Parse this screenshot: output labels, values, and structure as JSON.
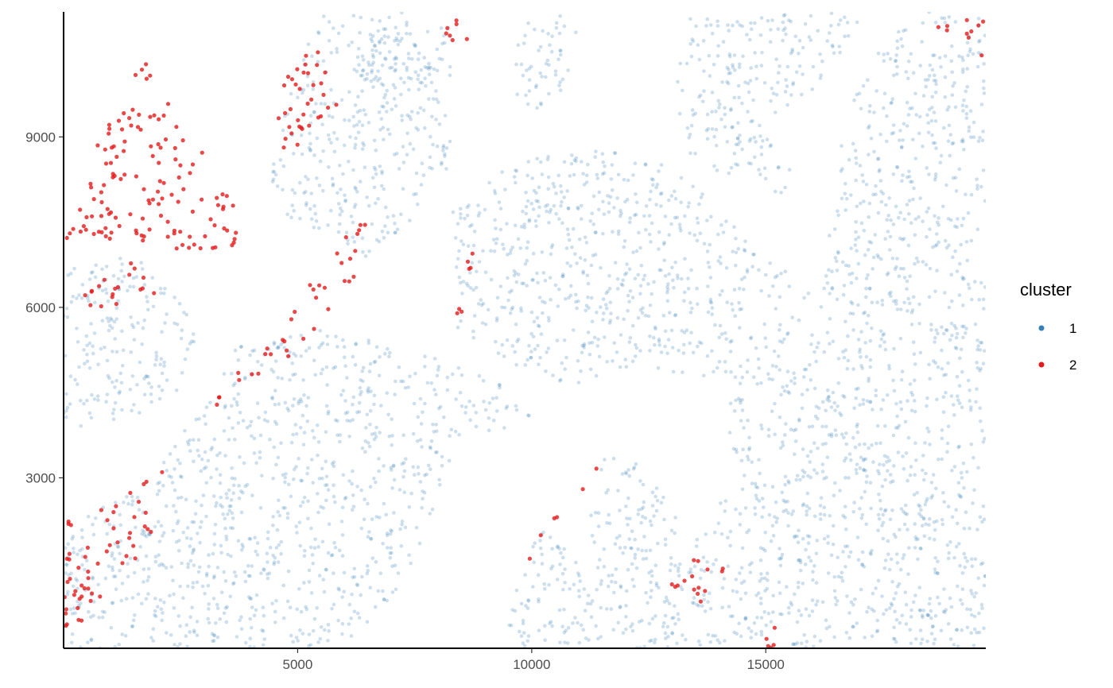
{
  "chart_data": {
    "type": "scatter",
    "title": "",
    "xlabel": "",
    "ylabel": "",
    "xlim": [
      0,
      19700
    ],
    "ylim": [
      0,
      11200
    ],
    "x_ticks": [
      5000,
      10000,
      15000
    ],
    "y_ticks": [
      3000,
      6000,
      9000
    ],
    "x_tick_labels": [
      "5000",
      "10000",
      "15000"
    ],
    "y_tick_labels": [
      "3000",
      "6000",
      "9000"
    ],
    "grid": false,
    "legend": {
      "title": "cluster",
      "placement": "right",
      "entries": [
        {
          "label": "1",
          "color": "#377EB8"
        },
        {
          "label": "2",
          "color": "#E41A1C"
        }
      ]
    },
    "series": [
      {
        "name": "1",
        "color": "#377EB8",
        "opacity": 0.25,
        "regions": [
          [
            [
              0,
              4000
            ],
            [
              0,
              6700
            ],
            [
              1500,
              6900
            ],
            [
              2500,
              6200
            ],
            [
              2900,
              5300
            ],
            [
              2700,
              4500
            ],
            [
              1500,
              4100
            ],
            [
              300,
              3900
            ]
          ],
          [
            [
              0,
              0
            ],
            [
              0,
              2200
            ],
            [
              1700,
              2800
            ],
            [
              2900,
              4200
            ],
            [
              3700,
              5300
            ],
            [
              4800,
              5500
            ],
            [
              6000,
              5700
            ],
            [
              7600,
              5200
            ],
            [
              9300,
              4700
            ],
            [
              10100,
              4000
            ],
            [
              8400,
              3700
            ],
            [
              8000,
              2500
            ],
            [
              7600,
              1700
            ],
            [
              7000,
              900
            ],
            [
              6200,
              200
            ],
            [
              5200,
              0
            ]
          ],
          [
            [
              8400,
              5500
            ],
            [
              8300,
              7700
            ],
            [
              9700,
              8600
            ],
            [
              11500,
              8800
            ],
            [
              13000,
              8500
            ],
            [
              14800,
              7100
            ],
            [
              16000,
              6200
            ],
            [
              15100,
              4800
            ],
            [
              13300,
              4700
            ],
            [
              12300,
              5000
            ],
            [
              11000,
              4600
            ],
            [
              9500,
              5000
            ]
          ],
          [
            [
              4400,
              8200
            ],
            [
              4800,
              9800
            ],
            [
              5500,
              11200
            ],
            [
              7200,
              11200
            ],
            [
              7900,
              10200
            ],
            [
              8400,
              8700
            ],
            [
              7400,
              7500
            ],
            [
              6300,
              6800
            ],
            [
              5700,
              7400
            ],
            [
              5000,
              7300
            ]
          ],
          [
            [
              6300,
              10200
            ],
            [
              6700,
              11200
            ],
            [
              8200,
              11200
            ],
            [
              8300,
              10100
            ],
            [
              7400,
              9700
            ],
            [
              6800,
              9600
            ]
          ],
          [
            [
              9600,
              9700
            ],
            [
              9700,
              11000
            ],
            [
              10600,
              11200
            ],
            [
              11100,
              10800
            ],
            [
              11000,
              10000
            ],
            [
              10100,
              9500
            ]
          ],
          [
            [
              13000,
              10000
            ],
            [
              13400,
              11200
            ],
            [
              17100,
              11200
            ],
            [
              16600,
              10500
            ],
            [
              16000,
              9800
            ],
            [
              15000,
              9300
            ],
            [
              14200,
              8300
            ],
            [
              13300,
              8700
            ]
          ],
          [
            [
              16200,
              6300
            ],
            [
              16600,
              9000
            ],
            [
              17100,
              10200
            ],
            [
              18200,
              11200
            ],
            [
              19700,
              11200
            ],
            [
              19700,
              0
            ],
            [
              17400,
              0
            ],
            [
              17100,
              2000
            ],
            [
              16700,
              3800
            ],
            [
              15900,
              5200
            ]
          ],
          [
            [
              11100,
              1500
            ],
            [
              11400,
              3300
            ],
            [
              12200,
              3500
            ],
            [
              13100,
              2300
            ],
            [
              13400,
              1700
            ],
            [
              14300,
              3200
            ],
            [
              14100,
              4400
            ],
            [
              14900,
              5300
            ],
            [
              15900,
              5100
            ],
            [
              17100,
              3800
            ],
            [
              17400,
              0
            ],
            [
              9400,
              0
            ],
            [
              9800,
              1600
            ],
            [
              10300,
              2100
            ]
          ],
          [
            [
              14200,
              8600
            ],
            [
              14800,
              8300
            ],
            [
              15300,
              7800
            ],
            [
              15600,
              8400
            ],
            [
              15100,
              9000
            ],
            [
              14600,
              9400
            ]
          ]
        ]
      },
      {
        "name": "2",
        "color": "#E41A1C",
        "opacity": 0.8,
        "regions": [
          [
            [
              0,
              7200
            ],
            [
              800,
              9100
            ],
            [
              1700,
              10400
            ],
            [
              2700,
              9200
            ],
            [
              3600,
              7900
            ],
            [
              3800,
              7100
            ],
            [
              2700,
              7000
            ],
            [
              1800,
              7100
            ],
            [
              600,
              6900
            ]
          ],
          [
            [
              200,
              6200
            ],
            [
              1500,
              6900
            ],
            [
              2100,
              6300
            ],
            [
              1700,
              5900
            ],
            [
              700,
              5900
            ]
          ],
          [
            [
              2900,
              3900
            ],
            [
              3500,
              4700
            ],
            [
              4600,
              5500
            ],
            [
              5400,
              6600
            ],
            [
              6100,
              7500
            ],
            [
              7000,
              7600
            ],
            [
              6400,
              6700
            ],
            [
              5600,
              5800
            ],
            [
              4700,
              5000
            ],
            [
              3700,
              4600
            ]
          ],
          [
            [
              4400,
              9500
            ],
            [
              4600,
              10200
            ],
            [
              5300,
              10600
            ],
            [
              6000,
              10300
            ],
            [
              5800,
              9400
            ],
            [
              5300,
              8800
            ],
            [
              4700,
              8700
            ]
          ],
          [
            [
              8000,
              10600
            ],
            [
              8100,
              11200
            ],
            [
              8600,
              11200
            ],
            [
              8700,
              10700
            ],
            [
              8300,
              10400
            ]
          ],
          [
            [
              8300,
              5500
            ],
            [
              8500,
              6600
            ],
            [
              8900,
              7300
            ],
            [
              8600,
              6200
            ],
            [
              8800,
              5500
            ]
          ],
          [
            [
              9900,
              1300
            ],
            [
              9900,
              2200
            ],
            [
              11100,
              2500
            ],
            [
              11400,
              3200
            ],
            [
              11700,
              3500
            ],
            [
              11100,
              2900
            ],
            [
              10600,
              2100
            ]
          ],
          [
            [
              12900,
              1000
            ],
            [
              13300,
              1600
            ],
            [
              14700,
              1400
            ],
            [
              14300,
              1000
            ],
            [
              13600,
              800
            ]
          ],
          [
            [
              14600,
              200
            ],
            [
              15200,
              400
            ],
            [
              15800,
              0
            ],
            [
              14900,
              0
            ]
          ],
          [
            [
              18600,
              11000
            ],
            [
              19700,
              11200
            ],
            [
              19700,
              10200
            ],
            [
              19200,
              10500
            ]
          ],
          [
            [
              0,
              0
            ],
            [
              0,
              2400
            ],
            [
              1100,
              2600
            ],
            [
              2200,
              3200
            ],
            [
              1800,
              1800
            ],
            [
              700,
              800
            ],
            [
              200,
              300
            ]
          ]
        ]
      }
    ]
  }
}
